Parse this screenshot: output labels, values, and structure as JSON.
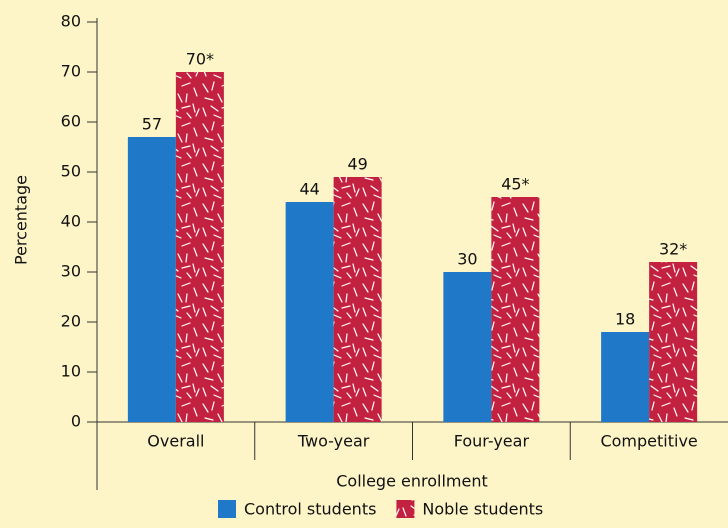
{
  "chart_data": {
    "type": "bar",
    "x_label": "College enrollment",
    "y_label": "Percentage",
    "categories": [
      "Overall",
      "Two-year",
      "Four-year",
      "Competitive"
    ],
    "series": [
      {
        "name": "Control students",
        "color": "#1f78c8",
        "values": [
          57,
          44,
          30,
          18
        ]
      },
      {
        "name": "Noble students",
        "color": "#c2213f",
        "texture": true,
        "values": [
          70,
          49,
          45,
          32
        ],
        "value_labels": [
          "70*",
          "49",
          "45*",
          "32*"
        ]
      }
    ],
    "ylim": [
      0,
      80
    ],
    "yticks": [
      0,
      10,
      20,
      30,
      40,
      50,
      60,
      70,
      80
    ],
    "legend": "bottom"
  }
}
